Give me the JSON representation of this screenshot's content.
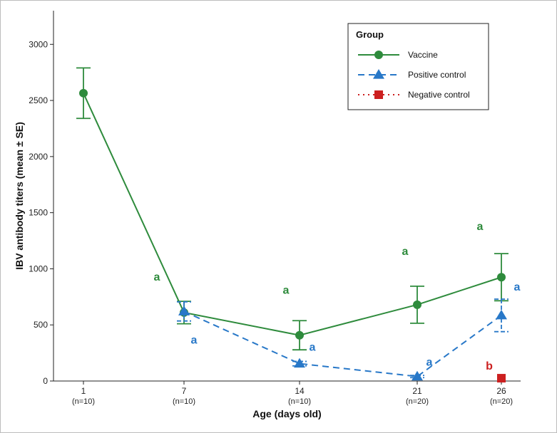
{
  "chart_data": {
    "type": "line",
    "xlabel": "Age (days old)",
    "ylabel": "IBV antibody titers (mean ± SE)",
    "ylim": [
      0,
      3300
    ],
    "yticks": [
      0,
      500,
      1000,
      1500,
      2000,
      2500,
      3000
    ],
    "categories": [
      "1",
      "7",
      "14",
      "21",
      "26"
    ],
    "category_sublabels": [
      "(n=10)",
      "(n=10)",
      "(n=10)",
      "(n=20)",
      "(n=20)"
    ],
    "grid": false,
    "legend_placement": "top-right",
    "legend_title": "Group",
    "series": [
      {
        "name": "Vaccine",
        "color": "#2e8b3c",
        "line_style": "solid",
        "marker": "circle",
        "x": [
          "1",
          "7",
          "14",
          "21",
          "26"
        ],
        "values": [
          2565,
          610,
          408,
          680,
          925
        ],
        "se": [
          225,
          100,
          130,
          165,
          210
        ],
        "significance": [
          {
            "x": "7",
            "label": "a"
          },
          {
            "x": "14",
            "label": "a"
          },
          {
            "x": "21",
            "label": "a"
          },
          {
            "x": "26",
            "label": "a"
          }
        ]
      },
      {
        "name": "Positive control",
        "color": "#2878c8",
        "line_style": "dashed",
        "marker": "triangle",
        "x": [
          "7",
          "14",
          "21",
          "26"
        ],
        "values": [
          620,
          155,
          40,
          585
        ],
        "se": [
          85,
          20,
          10,
          145
        ],
        "significance": [
          {
            "x": "7",
            "label": "a"
          },
          {
            "x": "14",
            "label": "a"
          },
          {
            "x": "21",
            "label": "a"
          },
          {
            "x": "26",
            "label": "a"
          }
        ]
      },
      {
        "name": "Negative control",
        "color": "#cc2020",
        "line_style": "dotted",
        "marker": "square",
        "x": [
          "26"
        ],
        "values": [
          25
        ],
        "se": [
          0
        ],
        "significance": [
          {
            "x": "26",
            "label": "b"
          }
        ]
      }
    ]
  }
}
